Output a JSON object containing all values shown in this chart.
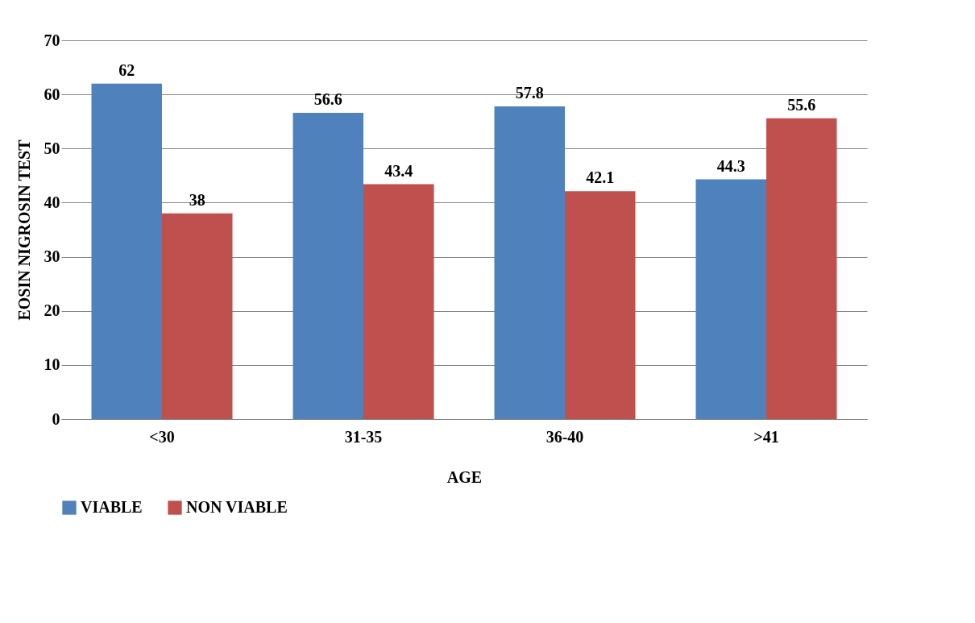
{
  "chart_data": {
    "type": "bar",
    "xlabel": "AGE",
    "ylabel": "EOSIN NIGROSIN TEST",
    "categories": [
      "<30",
      "31-35",
      "36-40",
      ">41"
    ],
    "series": [
      {
        "name": "VIABLE",
        "color": "#4f81bd",
        "values": [
          62,
          56.6,
          57.8,
          44.3
        ]
      },
      {
        "name": "NON VIABLE",
        "color": "#c0504d",
        "values": [
          38,
          43.4,
          42.1,
          55.6
        ]
      }
    ],
    "ylim": [
      0,
      70
    ],
    "yticks": [
      0,
      10,
      20,
      30,
      40,
      50,
      60,
      70
    ],
    "grid": "y",
    "legend": "bottom",
    "data_labels": true
  }
}
